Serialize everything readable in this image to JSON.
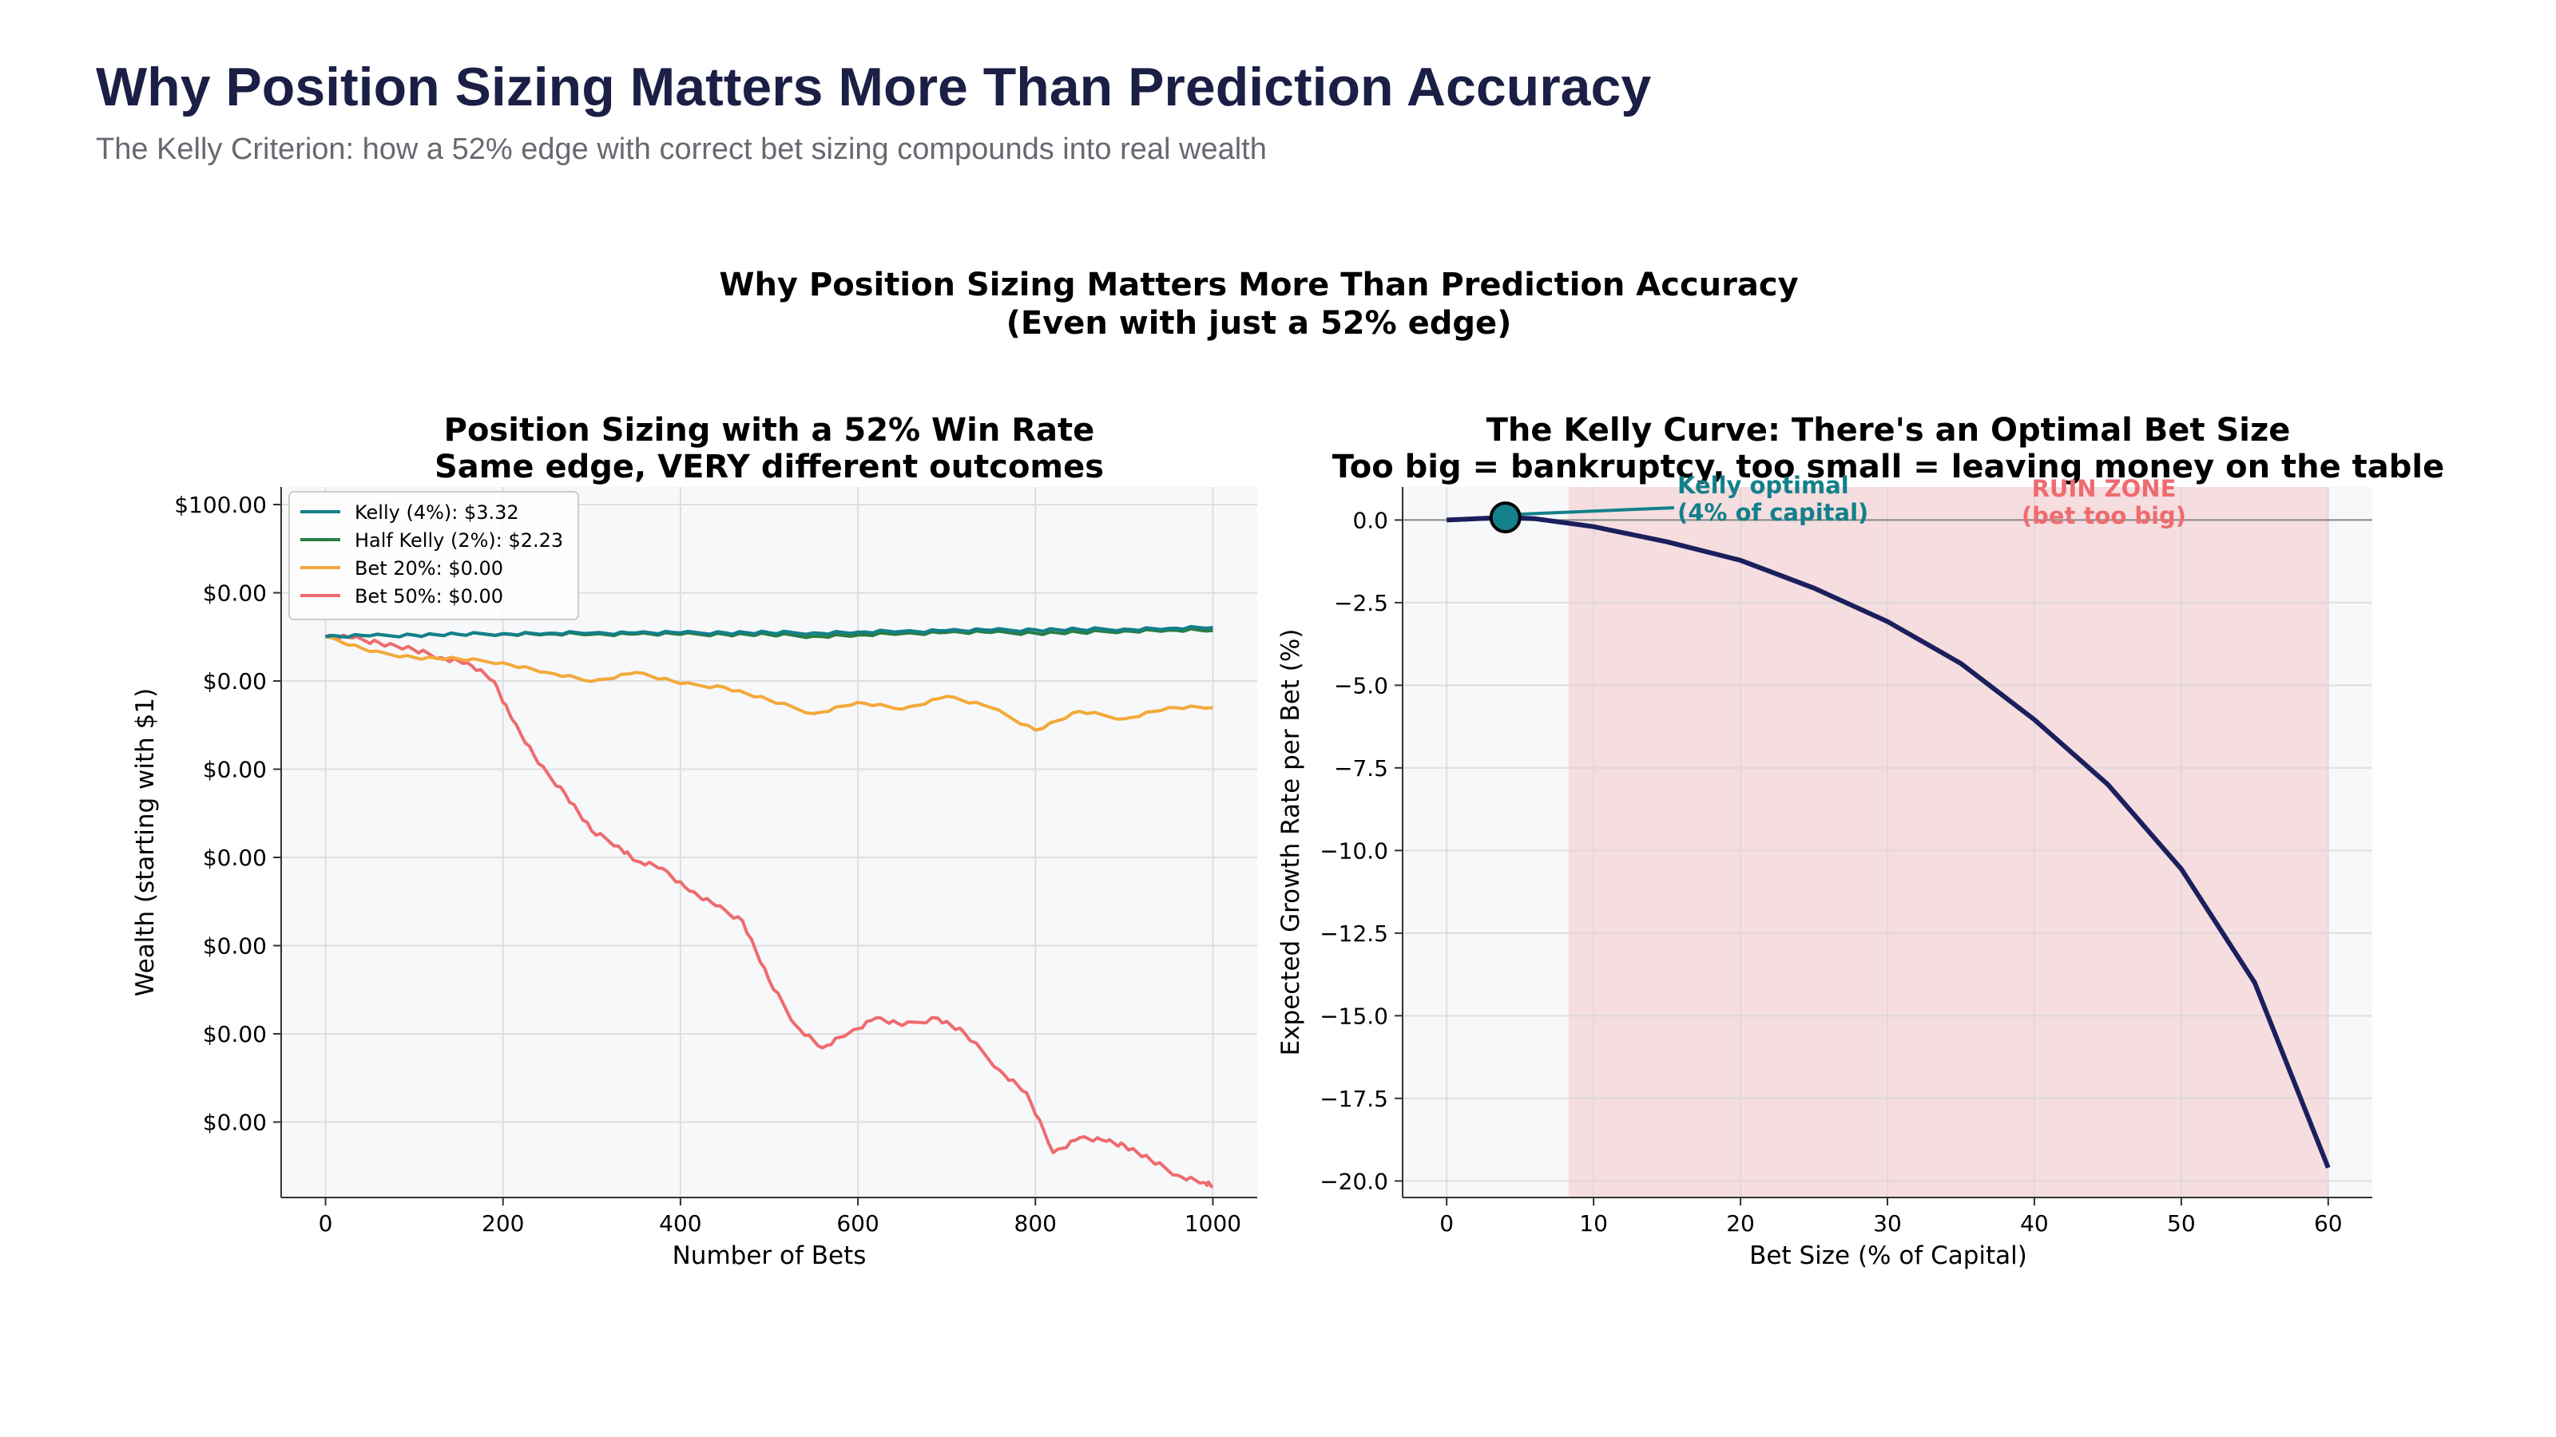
{
  "page": {
    "title": "Why Position Sizing Matters More Than Prediction Accuracy",
    "subtitle": "The Kelly Criterion: how a 52% edge with correct bet sizing compounds into real wealth"
  },
  "figure": {
    "suptitle_line1": "Why Position Sizing Matters More Than Prediction Accuracy",
    "suptitle_line2": "(Even with just a 52% edge)"
  },
  "chart_data": [
    {
      "type": "line",
      "title": "Position Sizing with a 52% Win Rate",
      "subtitle": "Same edge, VERY different outcomes",
      "xlabel": "Number of Bets",
      "ylabel": "Wealth (starting with $1)",
      "xlim": [
        -50,
        1050
      ],
      "x_ticks": [
        0,
        200,
        400,
        600,
        800,
        1000
      ],
      "y_tick_labels": [
        "$100.00",
        "$0.00",
        "$0.00",
        "$0.00",
        "$0.00",
        "$0.00",
        "$0.00",
        "$0.00"
      ],
      "grid": true,
      "legend_position": "top-left",
      "series": [
        {
          "name": "Kelly (4%): $3.32",
          "color": "#13808a",
          "x": [
            0,
            50,
            100,
            150,
            200,
            250,
            300,
            350,
            400,
            450,
            500,
            550,
            600,
            650,
            700,
            750,
            800,
            850,
            900,
            950,
            1000
          ],
          "y": [
            0,
            0.1,
            0.2,
            0.3,
            0.4,
            0.45,
            0.48,
            0.5,
            0.5,
            0.52,
            0.52,
            0.5,
            0.6,
            0.7,
            0.8,
            0.85,
            0.9,
            0.95,
            1.0,
            1.1,
            1.2
          ]
        },
        {
          "name": "Half Kelly (2%): $2.23",
          "color": "#2a7d45",
          "x": [
            0,
            50,
            100,
            150,
            200,
            250,
            300,
            350,
            400,
            450,
            500,
            550,
            600,
            650,
            700,
            750,
            800,
            850,
            900,
            950,
            1000
          ],
          "y": [
            0,
            0.08,
            0.2,
            0.28,
            0.35,
            0.35,
            0.3,
            0.35,
            0.3,
            0.3,
            0.25,
            0.05,
            0.2,
            0.4,
            0.55,
            0.55,
            0.45,
            0.55,
            0.75,
            0.85,
            0.8
          ]
        },
        {
          "name": "Bet 20%: $0.00",
          "color": "#f3a93a",
          "x": [
            0,
            50,
            100,
            150,
            200,
            250,
            300,
            350,
            400,
            450,
            500,
            550,
            600,
            650,
            700,
            750,
            800,
            850,
            900,
            950,
            1000
          ],
          "y": [
            0,
            -2,
            -2.8,
            -3,
            -3.5,
            -4.8,
            -6,
            -4.8,
            -6.3,
            -6.8,
            -8.5,
            -10.3,
            -8.8,
            -9.7,
            -8,
            -9.5,
            -12.5,
            -10,
            -11,
            -9.5,
            -9.5
          ]
        },
        {
          "name": "Bet 50%: $0.00",
          "color": "#ef6b6e",
          "x": [
            0,
            30,
            60,
            100,
            130,
            160,
            190,
            210,
            240,
            270,
            300,
            330,
            350,
            380,
            410,
            440,
            470,
            500,
            530,
            560,
            590,
            620,
            650,
            690,
            720,
            760,
            790,
            820,
            850,
            880,
            900,
            930,
            960,
            990,
            1000
          ],
          "y": [
            0,
            -0.2,
            -0.8,
            -1.8,
            -2.8,
            -3.5,
            -6,
            -11,
            -17,
            -21,
            -26,
            -28,
            -30,
            -31,
            -34,
            -36,
            -38,
            -46,
            -52,
            -55,
            -53,
            -51,
            -52,
            -51,
            -53,
            -58,
            -61,
            -69,
            -67,
            -67.5,
            -68,
            -70,
            -72,
            -73,
            -73.5
          ]
        }
      ]
    },
    {
      "type": "line",
      "title": "The Kelly Curve: There's an Optimal Bet Size",
      "subtitle": "Too big = bankruptcy, too small = leaving money on the table",
      "xlabel": "Bet Size (% of Capital)",
      "ylabel": "Expected Growth Rate per Bet (%)",
      "xlim": [
        -3,
        63
      ],
      "ylim": [
        -20.5,
        1.0
      ],
      "x_ticks": [
        0,
        10,
        20,
        30,
        40,
        50,
        60
      ],
      "y_ticks": [
        0.0,
        -2.5,
        -5.0,
        -7.5,
        -10.0,
        -12.5,
        -15.0,
        -17.5,
        -20.0
      ],
      "y_tick_labels": [
        "0.0",
        "−2.5",
        "−5.0",
        "−7.5",
        "−10.0",
        "−12.5",
        "−15.0",
        "−17.5",
        "−20.0"
      ],
      "grid": true,
      "series": [
        {
          "name": "Expected growth rate",
          "color": "#1b1f5c",
          "x": [
            0,
            2,
            4,
            6,
            8,
            10,
            15,
            20,
            25,
            30,
            35,
            40,
            45,
            50,
            55,
            60
          ],
          "y": [
            0,
            0.04,
            0.08,
            0.04,
            -0.08,
            -0.2,
            -0.66,
            -1.22,
            -2.06,
            -3.07,
            -4.34,
            -6.04,
            -8.0,
            -10.56,
            -14.0,
            -19.6
          ]
        }
      ],
      "optimal_point": {
        "x": 4,
        "y": 0.08,
        "color": "#13808a"
      },
      "ruin_zone": {
        "x_range": [
          8.3,
          60
        ],
        "color": "#f5dde0"
      },
      "annotations": [
        {
          "text_line1": "Kelly optimal",
          "text_line2": "(4% of capital)",
          "color": "#13808a"
        },
        {
          "text_line1": "RUIN ZONE",
          "text_line2": "(bet too big)",
          "color": "#ef6b6e"
        }
      ]
    }
  ]
}
